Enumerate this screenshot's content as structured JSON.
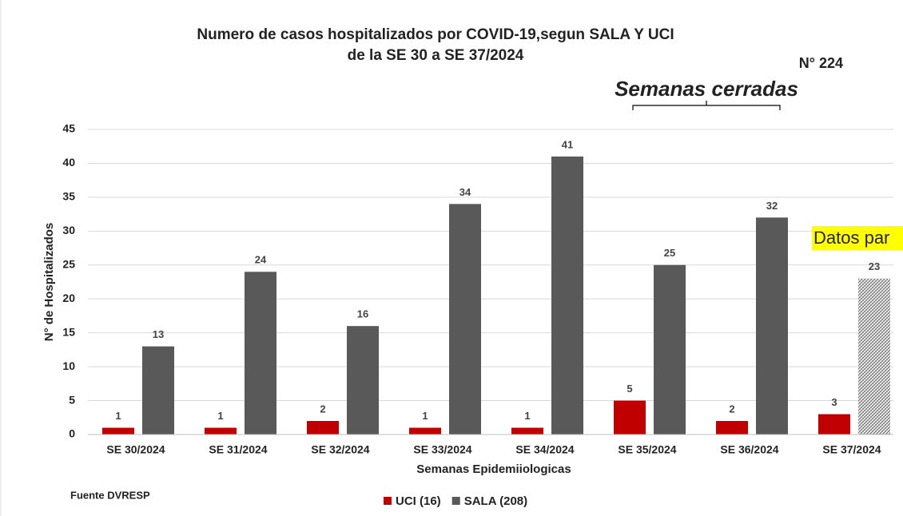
{
  "chart_data": {
    "type": "bar",
    "title": [
      "Numero de casos hospitalizados por COVID-19,segun SALA Y UCI",
      "de la SE 30 a SE 37/2024"
    ],
    "xlabel": "Semanas Epidemiiologicas",
    "ylabel": "N° de Hospitalizados",
    "annotations": [
      "N° 224",
      "Semanas cerradas",
      "Datos par"
    ],
    "source": "Fuente DVRESP",
    "categories": [
      "SE 30/2024",
      "SE 31/2024",
      "SE 32/2024",
      "SE 33/2024",
      "SE 34/2024",
      "SE 35/2024",
      "SE 36/2024",
      "SE 37/2024"
    ],
    "series": [
      {
        "name": "UCI (16)",
        "color": "#c00000",
        "values": [
          1,
          1,
          2,
          1,
          1,
          5,
          2,
          3
        ]
      },
      {
        "name": "SALA (208)",
        "color": "#595959",
        "values": [
          13,
          24,
          16,
          34,
          41,
          25,
          32,
          23
        ]
      }
    ],
    "hatched": {
      "series": 1,
      "index": 7
    },
    "ylim": [
      0,
      45
    ],
    "yticks": [
      0,
      5,
      10,
      15,
      20,
      25,
      30,
      35,
      40,
      45
    ],
    "grid": true,
    "legend": "bottom"
  }
}
